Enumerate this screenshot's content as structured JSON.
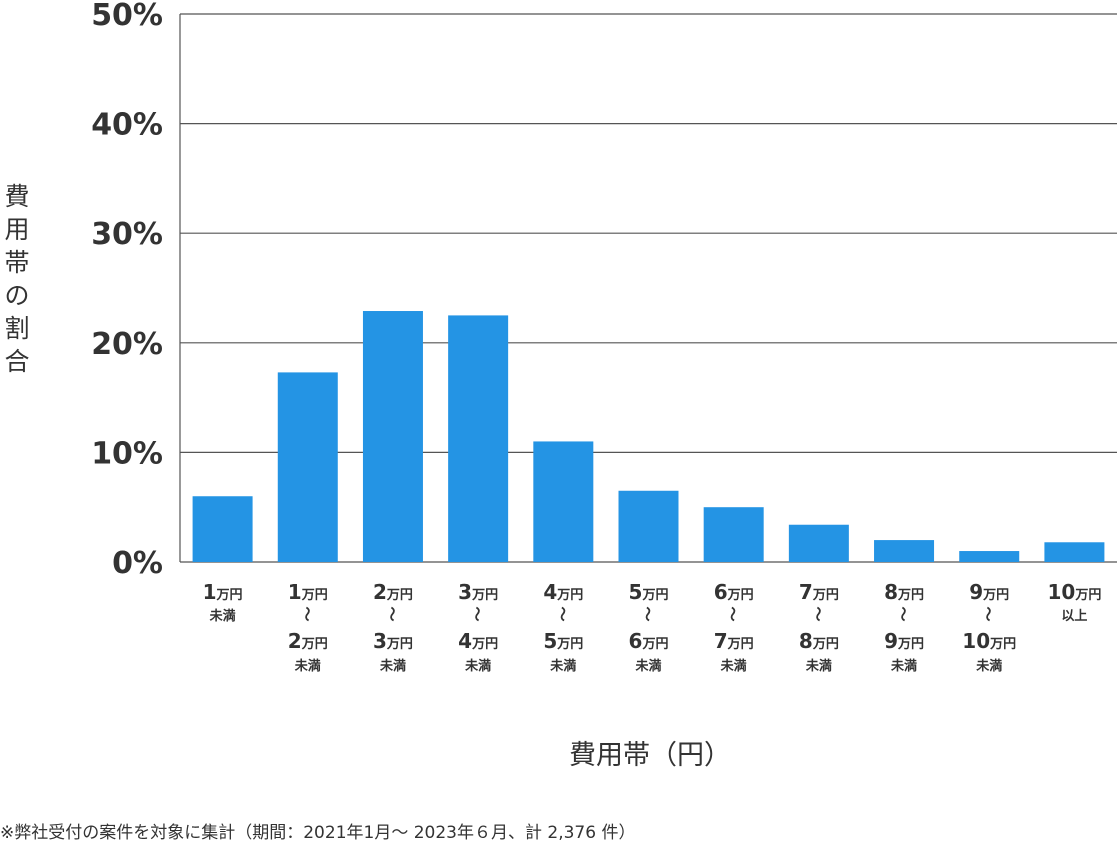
{
  "chart_data": {
    "type": "bar",
    "ylabel": "費用帯の割合",
    "xlabel": "費用帯（円）",
    "footnote": "※弊社受付の案件を対象に集計（期間：2021年1月～ 2023年６月、計 2,376 件）",
    "ylim": [
      0,
      50
    ],
    "yticks": [
      "0%",
      "10%",
      "20%",
      "30%",
      "40%",
      "50%"
    ],
    "ytick_values": [
      0,
      10,
      20,
      30,
      40,
      50
    ],
    "grid": true,
    "color": "#2494e4",
    "categories": [
      {
        "from": "1",
        "from_unit": "万円",
        "to": "",
        "to_unit": "",
        "suffix": "未満"
      },
      {
        "from": "1",
        "from_unit": "万円",
        "to": "2",
        "to_unit": "万円",
        "suffix": "未満"
      },
      {
        "from": "2",
        "from_unit": "万円",
        "to": "3",
        "to_unit": "万円",
        "suffix": "未満"
      },
      {
        "from": "3",
        "from_unit": "万円",
        "to": "4",
        "to_unit": "万円",
        "suffix": "未満"
      },
      {
        "from": "4",
        "from_unit": "万円",
        "to": "5",
        "to_unit": "万円",
        "suffix": "未満"
      },
      {
        "from": "5",
        "from_unit": "万円",
        "to": "6",
        "to_unit": "万円",
        "suffix": "未満"
      },
      {
        "from": "6",
        "from_unit": "万円",
        "to": "7",
        "to_unit": "万円",
        "suffix": "未満"
      },
      {
        "from": "7",
        "from_unit": "万円",
        "to": "8",
        "to_unit": "万円",
        "suffix": "未満"
      },
      {
        "from": "8",
        "from_unit": "万円",
        "to": "9",
        "to_unit": "万円",
        "suffix": "未満"
      },
      {
        "from": "9",
        "from_unit": "万円",
        "to": "10",
        "to_unit": "万円",
        "suffix": "未満"
      },
      {
        "from": "10",
        "from_unit": "万円",
        "to": "",
        "to_unit": "",
        "suffix": "以上"
      }
    ],
    "range_mark": "〜",
    "values": [
      6.0,
      17.3,
      22.9,
      22.5,
      11.0,
      6.5,
      5.0,
      3.4,
      2.0,
      1.0,
      1.8
    ]
  }
}
